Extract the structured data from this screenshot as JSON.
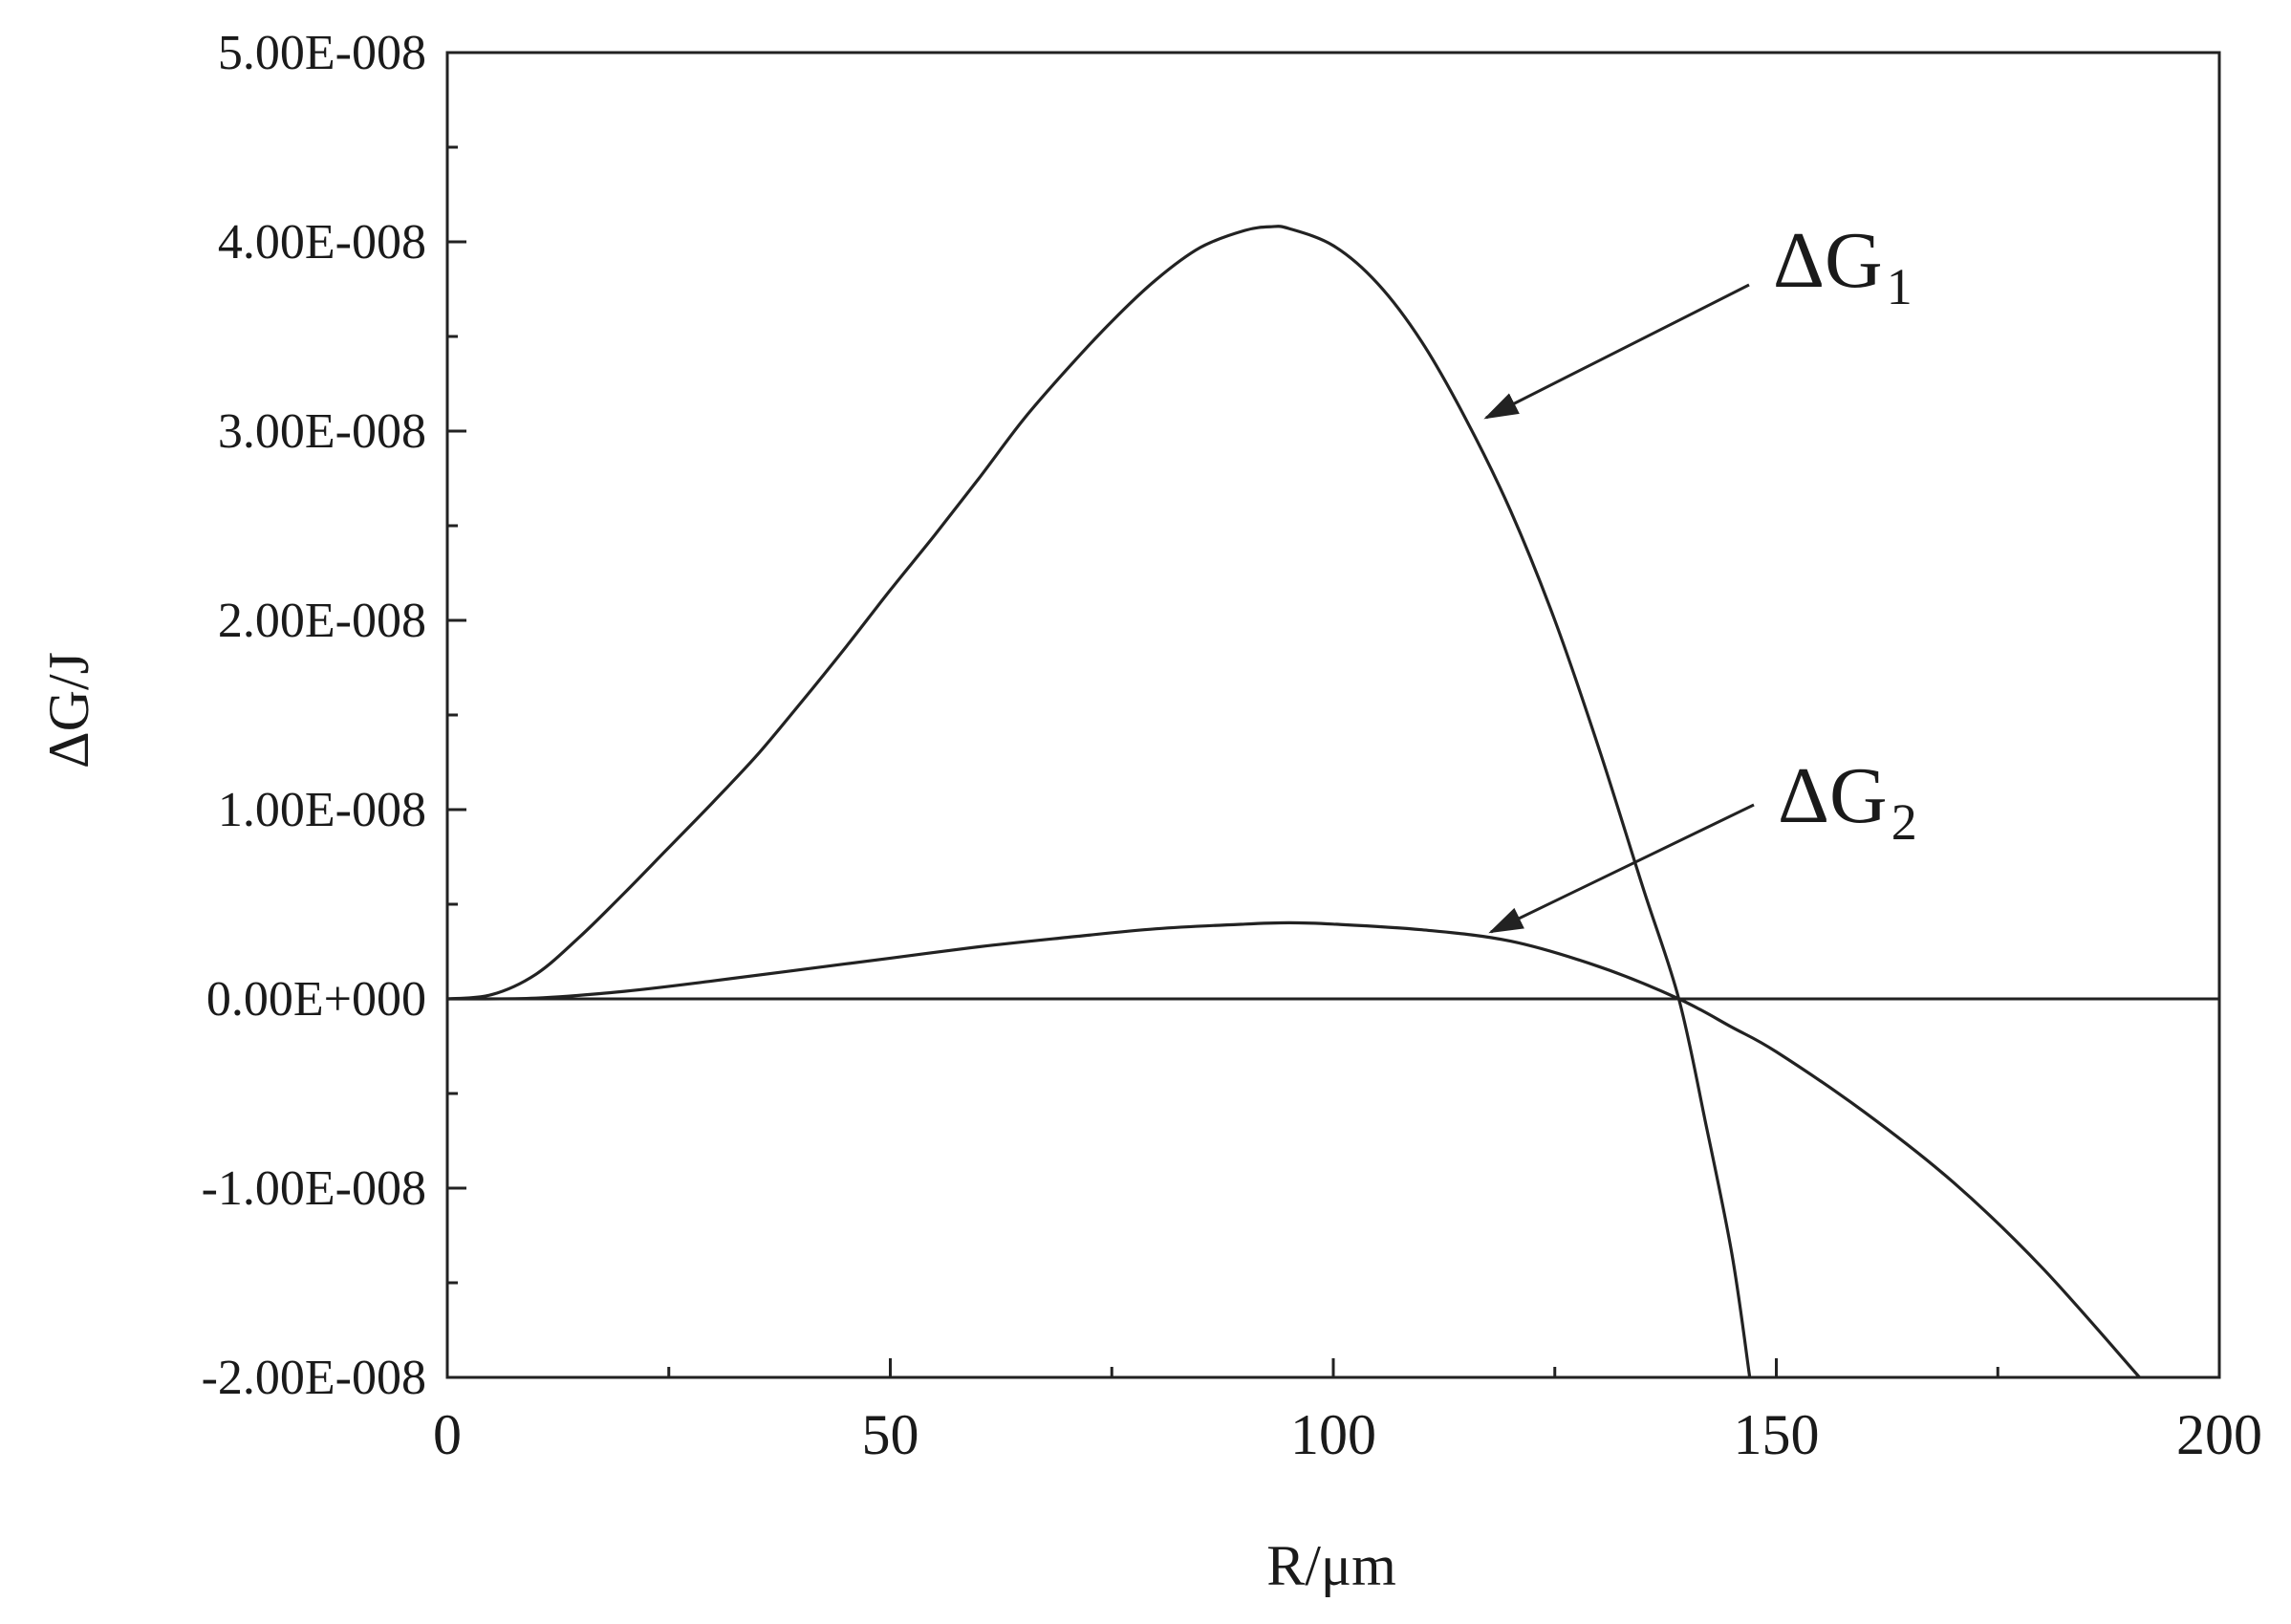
{
  "chart_data": {
    "type": "line",
    "title": "",
    "xlabel": "R/μm",
    "ylabel": "ΔG/J",
    "xlim": [
      0,
      200
    ],
    "ylim": [
      -2e-08,
      5e-08
    ],
    "grid": false,
    "x_ticks": [
      0,
      50,
      100,
      150,
      200
    ],
    "x_tick_labels": [
      "0",
      "50",
      "100",
      "150",
      "200"
    ],
    "y_ticks": [
      -2e-08,
      -1e-08,
      0,
      1e-08,
      2e-08,
      3e-08,
      4e-08,
      5e-08
    ],
    "y_tick_labels": [
      "-2.00E-008",
      "-1.00E-008",
      "0.00E+000",
      "1.00E-008",
      "2.00E-008",
      "3.00E-008",
      "4.00E-008",
      "5.00E-008"
    ],
    "zero_line": true,
    "series_color": "#222222",
    "series": [
      {
        "name": "ΔG1",
        "label_main": "ΔG",
        "label_sub": "1",
        "x": [
          0,
          5,
          10,
          15,
          20,
          25,
          30,
          35,
          40,
          45,
          50,
          55,
          60,
          65,
          70,
          75,
          80,
          85,
          90,
          93,
          95,
          100,
          105,
          110,
          115,
          120,
          125,
          130,
          135,
          139,
          142,
          145,
          147
        ],
        "y": [
          0,
          2.2e-10,
          1.3e-09,
          3.3e-09,
          5.6e-09,
          8e-09,
          1.04e-08,
          1.29e-08,
          1.57e-08,
          1.86e-08,
          2.16e-08,
          2.45e-08,
          2.75e-08,
          3.06e-08,
          3.33e-08,
          3.58e-08,
          3.8e-08,
          3.97e-08,
          4.06e-08,
          4.08e-08,
          4.07e-08,
          3.98e-08,
          3.78e-08,
          3.47e-08,
          3.06e-08,
          2.58e-08,
          2e-08,
          1.32e-08,
          5.8e-09,
          0,
          -6.5e-09,
          -1.35e-08,
          -2e-08
        ]
      },
      {
        "name": "ΔG2",
        "label_main": "ΔG",
        "label_sub": "2",
        "x": [
          0,
          10,
          20,
          30,
          40,
          50,
          60,
          70,
          80,
          90,
          95,
          100,
          110,
          120,
          130,
          139,
          145,
          150,
          160,
          170,
          180,
          191
        ],
        "y": [
          0,
          4e-11,
          4e-10,
          9.5e-10,
          1.55e-09,
          2.15e-09,
          2.75e-09,
          3.25e-09,
          3.7e-09,
          3.95e-09,
          4.02e-09,
          3.95e-09,
          3.65e-09,
          3.05e-09,
          1.7e-09,
          0,
          -1.5e-09,
          -2.8e-09,
          -6e-09,
          -9.7e-09,
          -1.42e-08,
          -2e-08
        ]
      }
    ]
  }
}
